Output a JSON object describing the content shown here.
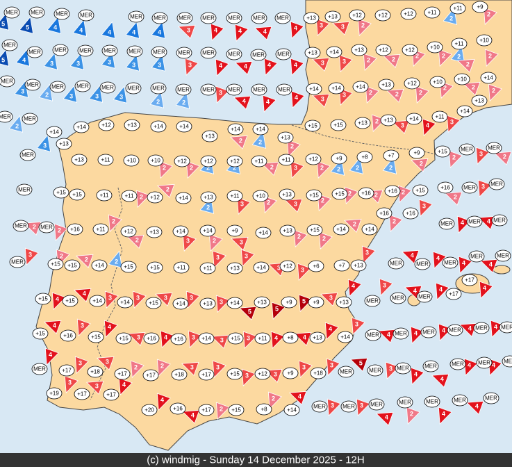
{
  "map": {
    "temperature_rows": [
      [
        "MER",
        "MER",
        "MER",
        "MER",
        "MER",
        "MER",
        "MER",
        "MER",
        "MER",
        "MER",
        "MER",
        "+13",
        "+13",
        "+12",
        "+12",
        "+12",
        "+11",
        "+11",
        "+9"
      ],
      [
        "MER",
        "MER",
        "MER",
        "MER",
        "MER",
        "MER",
        "MER",
        "MER",
        "MER",
        "MER",
        "MER",
        "MER",
        "+13",
        "+14",
        "+13",
        "+12",
        "+12",
        "+10",
        "+11",
        "+10"
      ],
      [
        "MER",
        "MER",
        "MER",
        "MER",
        "MER",
        "MER",
        "MER",
        "MER",
        "MER",
        "MER",
        "MER",
        "MER",
        "+14",
        "+14",
        "+14",
        "+13",
        "+12",
        "+10",
        "+10",
        "+14"
      ],
      [
        "MER",
        "MER",
        "+14",
        "+13",
        "+14",
        "+12",
        "+13",
        "+14",
        "+14",
        "+13",
        "+14",
        "+14",
        "+13",
        "+15",
        "+15",
        "+13",
        "+13",
        "+14",
        "+11",
        "+14",
        "+13"
      ],
      [
        "MER",
        "+13",
        "+11",
        "+10",
        "+10",
        "+12",
        "+12",
        "+12",
        "+11",
        "+11",
        "+12",
        "+9",
        "+8",
        "+7",
        "+9",
        "+15",
        "MER",
        "MER"
      ],
      [
        "MER",
        "+15",
        "+15",
        "+11",
        "+11",
        "+12",
        "+14",
        "+13",
        "+11",
        "+10",
        "+13",
        "+15",
        "+15",
        "+16",
        "+16",
        "+15",
        "+16",
        "MER",
        "MER"
      ],
      [
        "MER",
        "MER",
        "+16",
        "+11",
        "+12",
        "+13",
        "+14",
        "+14",
        "+9",
        "+14",
        "+13",
        "+15",
        "+14",
        "+14",
        "+16",
        "+16",
        "MER",
        "MER",
        "MER"
      ],
      [
        "MER",
        "+15",
        "+15",
        "+14",
        "+15",
        "+15",
        "+11",
        "+11",
        "+13",
        "+14",
        "+12",
        "+6",
        "+7",
        "+13",
        "MER",
        "MER",
        "MER",
        "MER",
        "MER",
        "+17"
      ],
      [
        "+15",
        "+15",
        "+14",
        "+14",
        "+15",
        "+14",
        "+13",
        "+14",
        "+13",
        "+9",
        "+9",
        "+13",
        "MER",
        "MER",
        "MER",
        "+17"
      ],
      [
        "+15",
        "+16",
        "+15",
        "+15",
        "+16",
        "+16",
        "+14",
        "+15",
        "+11",
        "+8",
        "+13",
        "+14",
        "MER",
        "MER",
        "MER",
        "MER",
        "MER",
        "MER"
      ],
      [
        "MER",
        "+17",
        "+18",
        "+17",
        "+17",
        "+18",
        "+17",
        "+15",
        "+12",
        "+9",
        "+18",
        "MER",
        "MER",
        "MER",
        "MER",
        "MER",
        "MER",
        "MER"
      ],
      [
        "+19",
        "+17",
        "+17",
        "+20",
        "+16",
        "+17",
        "+15",
        "+8",
        "+14",
        "MER",
        "MER",
        "MER",
        "MER",
        "MER",
        "MER",
        "MER"
      ]
    ],
    "winds": {
      "blue": [
        5,
        5,
        4,
        4,
        4,
        4,
        4,
        5,
        4,
        3,
        3,
        3,
        3,
        3,
        3,
        2,
        3,
        3,
        3,
        2,
        2,
        2,
        3,
        2,
        2,
        2,
        2,
        2,
        2,
        2,
        2,
        2,
        2
      ],
      "red": [
        [
          3,
          4,
          4,
          4,
          4,
          3,
          3,
          2,
          2
        ],
        [
          3,
          4,
          4,
          4,
          4,
          3,
          3,
          2,
          2,
          2,
          2,
          2,
          2
        ],
        [
          3,
          4,
          4,
          4,
          3,
          3,
          2,
          2,
          2,
          2,
          2,
          2
        ],
        [
          2,
          2,
          2,
          3,
          4,
          3
        ],
        [
          2,
          2,
          2,
          3,
          2,
          2,
          2,
          3,
          2
        ],
        [
          2,
          2,
          3,
          2,
          3,
          2,
          2,
          2,
          2,
          3,
          2,
          3
        ],
        [
          2,
          2,
          2,
          2,
          3,
          2,
          3,
          2,
          2,
          2,
          2,
          4,
          4
        ],
        [
          3,
          2,
          2,
          3,
          3,
          3,
          3,
          3,
          4,
          4,
          4,
          4
        ],
        [
          4,
          4,
          3,
          3,
          3,
          3,
          3,
          5,
          5,
          5,
          3,
          4,
          3,
          4,
          4,
          4
        ],
        [
          4,
          3,
          4,
          3,
          4,
          3,
          3,
          3,
          4,
          4,
          4,
          3,
          4,
          4,
          4,
          4,
          4
        ],
        [
          4,
          3,
          3,
          2,
          2,
          3,
          3,
          3,
          3,
          3,
          3,
          5,
          3,
          4,
          4,
          4,
          4
        ],
        [
          3,
          3,
          4,
          4,
          4,
          2,
          2,
          4,
          3,
          3,
          4,
          2,
          4,
          4
        ]
      ]
    },
    "palette": {
      "blue": {
        "2": "#6aacf0",
        "3": "#3c93e6",
        "4": "#1a78de",
        "5": "#0a4cb2"
      },
      "red": {
        "2": "#f07888",
        "3": "#ef4848",
        "4": "#e3121c",
        "5": "#b4000a"
      }
    },
    "footer": "(c) windmig - Sunday 14 December 2025 - 12H"
  }
}
